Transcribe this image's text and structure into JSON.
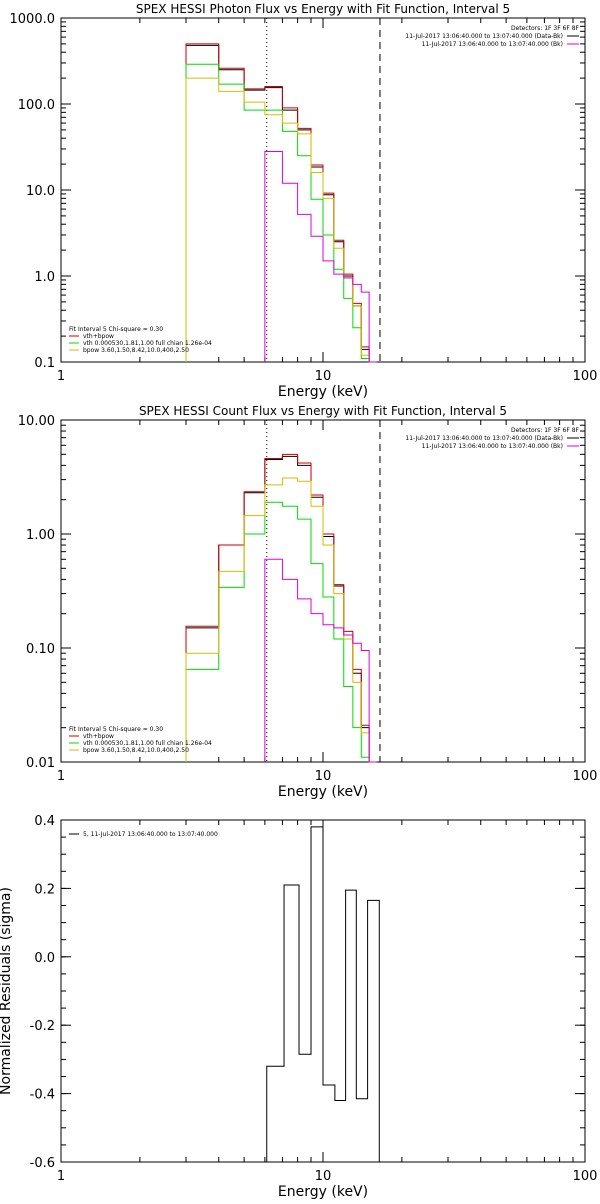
{
  "chart_data": [
    {
      "type": "line",
      "title": "SPEX HESSI Photon Flux vs Energy with Fit Function, Interval 5",
      "xlabel": "Energy (keV)",
      "ylabel": "",
      "xscale": "log",
      "yscale": "log",
      "xlim": [
        1,
        100
      ],
      "ylim": [
        0.1,
        1000
      ],
      "xticks": [
        {
          "v": 1,
          "label": "1"
        },
        {
          "v": 10,
          "label": "10"
        },
        {
          "v": 100,
          "label": "100"
        }
      ],
      "yticks": [
        {
          "v": 0.1,
          "label": "0.1"
        },
        {
          "v": 1,
          "label": "1.0"
        },
        {
          "v": 10,
          "label": "10.0"
        },
        {
          "v": 100,
          "label": "100.0"
        },
        {
          "v": 1000,
          "label": "1000.0"
        }
      ],
      "edges": [
        3,
        4,
        5,
        6,
        7,
        8,
        9,
        10,
        11,
        12,
        13,
        14,
        15,
        16
      ],
      "vlines": [
        {
          "x": 6.1,
          "style": "dotted",
          "color": "#000000"
        },
        {
          "x": 16.5,
          "style": "dashed",
          "color": "#000000"
        }
      ],
      "series": [
        {
          "name": "",
          "color": "#000000",
          "values": [
            480,
            250,
            145,
            155,
            85,
            50,
            18.5,
            8.8,
            2.5,
            1.0,
            0.45,
            0.14,
            0.1
          ]
        },
        {
          "name": "",
          "color": "#cc0000",
          "values": [
            500,
            260,
            150,
            160,
            90,
            52,
            19.5,
            9.2,
            2.6,
            1.05,
            0.48,
            0.15,
            0.1
          ]
        },
        {
          "name": "",
          "color": "#00dd00",
          "values": [
            290,
            170,
            85,
            85,
            48,
            25,
            7.8,
            3.0,
            1.2,
            0.55,
            0.25,
            0.11,
            0.1
          ]
        },
        {
          "name": "",
          "color": "#ddbb00",
          "values": [
            200,
            140,
            105,
            75,
            60,
            45,
            16,
            8.0,
            2.1,
            0.95,
            0.45,
            0.12,
            0.1
          ]
        },
        {
          "name": "",
          "color": "#dd00dd",
          "start": 3,
          "values": [
            28,
            12,
            5.2,
            2.9,
            1.5,
            1.05,
            0.95,
            0.8,
            0.65,
            0.1
          ]
        }
      ],
      "top_legend": {
        "header": "Detectors: 1F 3F 6F 8F",
        "items": [
          {
            "text": "11-Jul-2017 13:06:40.000 to 13:07:40.000 (Data-Bk)",
            "color": "#000000"
          },
          {
            "text": "11-Jul-2017 13:06:40.000 to 13:07:40.000 (Bk)",
            "color": "#dd00dd"
          }
        ]
      },
      "fit_legend": {
        "header": "Fit Interval 5   Chi-square = 0.30",
        "items": [
          {
            "text": "vth+bpow",
            "color": "#cc0000"
          },
          {
            "text": "vth 0.000530,1.81,1.00  full chian 1.26e-04",
            "color": "#00dd00"
          },
          {
            "text": "bpow 3.60,1.50,8.42,10.0,400,2.50",
            "color": "#ddbb00"
          }
        ]
      }
    },
    {
      "type": "line",
      "title": "SPEX HESSI Count Flux vs Energy with Fit Function, Interval 5",
      "xlabel": "Energy (keV)",
      "ylabel": "",
      "xscale": "log",
      "yscale": "log",
      "xlim": [
        1,
        100
      ],
      "ylim": [
        0.01,
        10
      ],
      "xticks": [
        {
          "v": 1,
          "label": "1"
        },
        {
          "v": 10,
          "label": "10"
        },
        {
          "v": 100,
          "label": "100"
        }
      ],
      "yticks": [
        {
          "v": 0.01,
          "label": "0.01"
        },
        {
          "v": 0.1,
          "label": "0.10"
        },
        {
          "v": 1,
          "label": "1.00"
        },
        {
          "v": 10,
          "label": "10.00"
        }
      ],
      "edges": [
        3,
        4,
        5,
        6,
        7,
        8,
        9,
        10,
        11,
        12,
        13,
        14,
        15,
        16
      ],
      "vlines": [
        {
          "x": 6.1,
          "style": "dotted",
          "color": "#000000"
        },
        {
          "x": 16.5,
          "style": "dashed",
          "color": "#000000"
        }
      ],
      "series": [
        {
          "name": "",
          "color": "#000000",
          "values": [
            0.15,
            0.8,
            2.3,
            4.5,
            4.8,
            4.0,
            2.1,
            0.95,
            0.35,
            0.13,
            0.06,
            0.02,
            0.01
          ]
        },
        {
          "name": "",
          "color": "#cc0000",
          "values": [
            0.155,
            0.8,
            2.35,
            4.6,
            5.0,
            4.2,
            2.2,
            1.0,
            0.36,
            0.14,
            0.065,
            0.021,
            0.01
          ]
        },
        {
          "name": "",
          "color": "#00dd00",
          "values": [
            0.065,
            0.34,
            1.0,
            1.9,
            1.75,
            1.35,
            0.55,
            0.28,
            0.12,
            0.046,
            0.02,
            0.011,
            0.01
          ]
        },
        {
          "name": "",
          "color": "#ddbb00",
          "values": [
            0.09,
            0.47,
            1.45,
            2.7,
            3.1,
            2.9,
            1.75,
            0.8,
            0.3,
            0.12,
            0.05,
            0.018,
            0.01
          ]
        },
        {
          "name": "",
          "color": "#dd00dd",
          "start": 3,
          "values": [
            0.6,
            0.4,
            0.27,
            0.2,
            0.16,
            0.15,
            0.13,
            0.11,
            0.095,
            0.01
          ]
        }
      ],
      "top_legend": {
        "header": "Detectors: 1F 3F 6F 8F",
        "items": [
          {
            "text": "11-Jul-2017 13:06:40.000 to 13:07:40.000 (Data-Bk)",
            "color": "#000000"
          },
          {
            "text": "11-Jul-2017 13:06:40.000 to 13:07:40.000 (Bk)",
            "color": "#dd00dd"
          }
        ]
      },
      "fit_legend": {
        "header": "Fit Interval 5   Chi-square = 0.30",
        "items": [
          {
            "text": "vth+bpow",
            "color": "#cc0000"
          },
          {
            "text": "vth 0.000530,1.81,1.00  full chian 1.26e-04",
            "color": "#00dd00"
          },
          {
            "text": "bpow 3.60,1.50,8.42,10.0,400,2.50",
            "color": "#ddbb00"
          }
        ]
      }
    },
    {
      "type": "line",
      "title": "",
      "xlabel": "Energy (keV)",
      "ylabel": "Normalized Residuals (sigma)",
      "xscale": "log",
      "yscale": "linear",
      "xlim": [
        1,
        100
      ],
      "ylim": [
        -0.6,
        0.4
      ],
      "xticks": [
        {
          "v": 1,
          "label": "1"
        },
        {
          "v": 10,
          "label": "10"
        },
        {
          "v": 100,
          "label": "100"
        }
      ],
      "yticks": [
        {
          "v": -0.6,
          "label": "-0.6"
        },
        {
          "v": -0.4,
          "label": "-0.4"
        },
        {
          "v": -0.2,
          "label": "-0.2"
        },
        {
          "v": 0,
          "label": "0.0"
        },
        {
          "v": 0.2,
          "label": "0.2"
        },
        {
          "v": 0.4,
          "label": "0.4"
        }
      ],
      "edges": [
        6.1,
        7.1,
        8.1,
        9.0,
        10.0,
        11.1,
        12.2,
        13.4,
        14.8,
        16.4
      ],
      "floor": -0.6,
      "vlines": [],
      "series": [
        {
          "name": "5, 11-Jul-2017 13:06:40.000 to 13:07:40.000",
          "color": "#000000",
          "values": [
            -0.32,
            0.21,
            -0.285,
            0.38,
            -0.375,
            -0.42,
            0.195,
            -0.415,
            0.165
          ]
        }
      ],
      "legend": {
        "items": [
          {
            "text": "5, 11-Jul-2017 13:06:40.000 to 13:07:40.000",
            "color": "#000000"
          }
        ]
      }
    }
  ]
}
